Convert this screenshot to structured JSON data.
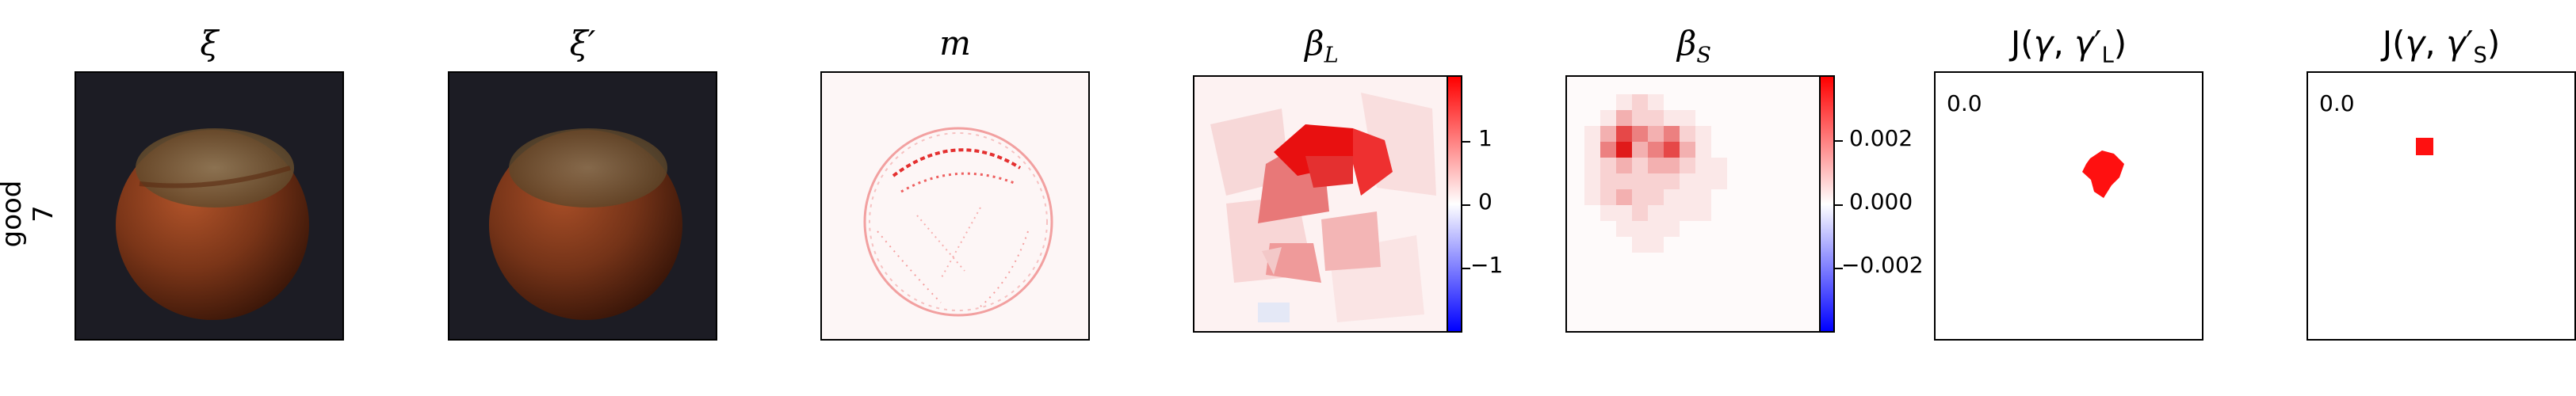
{
  "row": {
    "label_line1": "good",
    "label_line2": "7"
  },
  "panels": {
    "xi": {
      "title": "ξ"
    },
    "xi_prime": {
      "title": "ξ′"
    },
    "m": {
      "title": "m"
    },
    "beta_L": {
      "title": "β_L",
      "colorbar_ticks": [
        "1",
        "0",
        "−1"
      ],
      "colorbar_range": [
        -1.9,
        1.9
      ]
    },
    "beta_S": {
      "title": "β_S",
      "colorbar_ticks": [
        "0.002",
        "0.000",
        "−0.002"
      ],
      "colorbar_range": [
        -0.0038,
        0.0038
      ]
    },
    "J_L": {
      "title": "J(γ, γ′_L)",
      "value": "0.0"
    },
    "J_S": {
      "title": "J(γ, γ′_S)",
      "value": "0.0"
    }
  },
  "colors": {
    "positive": "#ff0000",
    "negative": "#0000ff",
    "neutral": "#ffffff",
    "image_bg": "#1b1b22",
    "hazelnut": "#7a3518"
  }
}
